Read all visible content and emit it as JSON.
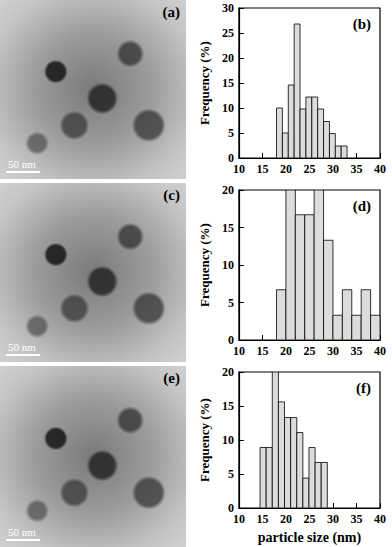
{
  "images": [
    {
      "label": "(a)",
      "scale_bar": "50 nm"
    },
    {
      "label": "(c)",
      "scale_bar": "50 nm"
    },
    {
      "label": "(e)",
      "scale_bar": "50 nm"
    }
  ],
  "chart_data": [
    {
      "type": "histogram",
      "title": "(b)",
      "y_label": "Frequency (%)",
      "bins": [
        18,
        19.25,
        20.5,
        21.75,
        23,
        24.25,
        25.5,
        26.75,
        28,
        29.25,
        30.5,
        31.75,
        33
      ],
      "values": [
        10,
        5,
        14.6,
        26.8,
        9.8,
        12.2,
        12.2,
        9.8,
        7.3,
        4.9,
        2.4,
        2.4
      ],
      "color": "#dcdcdc",
      "xlim": [
        10,
        40
      ],
      "xticks": [
        10,
        15,
        20,
        25,
        30,
        35,
        40
      ],
      "ylim": [
        0,
        30
      ],
      "yticks": [
        0,
        5,
        10,
        15,
        20,
        25,
        30
      ]
    },
    {
      "type": "histogram",
      "title": "(d)",
      "y_label": "Frequency (%)",
      "bins": [
        18,
        20,
        22,
        24,
        26,
        28,
        30,
        32,
        34,
        36,
        38,
        40
      ],
      "values": [
        6.7,
        20,
        16.7,
        16.7,
        20,
        13.3,
        3.3,
        6.7,
        3.3,
        6.7,
        3.3
      ],
      "color": "#dcdcdc",
      "xlim": [
        10,
        40
      ],
      "xticks": [
        10,
        15,
        20,
        25,
        30,
        35,
        40
      ],
      "ylim": [
        0,
        20
      ],
      "yticks": [
        0,
        5,
        10,
        15,
        20
      ]
    },
    {
      "type": "histogram",
      "title": "(f)",
      "y_label": "Frequency (%)",
      "x_label": "particle size (nm)",
      "bins": [
        14.5,
        15.8,
        17.1,
        18.4,
        19.7,
        21,
        22.3,
        23.6,
        24.9,
        26.2,
        27.5,
        28.8
      ],
      "values": [
        8.9,
        8.9,
        20,
        15.6,
        13.3,
        13.3,
        11.1,
        4.4,
        8.9,
        6.7,
        6.7
      ],
      "color": "#dcdcdc",
      "xlim": [
        10,
        40
      ],
      "xticks": [
        10,
        15,
        20,
        25,
        30,
        35,
        40
      ],
      "ylim": [
        0,
        20
      ],
      "yticks": [
        0,
        5,
        10,
        15,
        20
      ]
    }
  ]
}
